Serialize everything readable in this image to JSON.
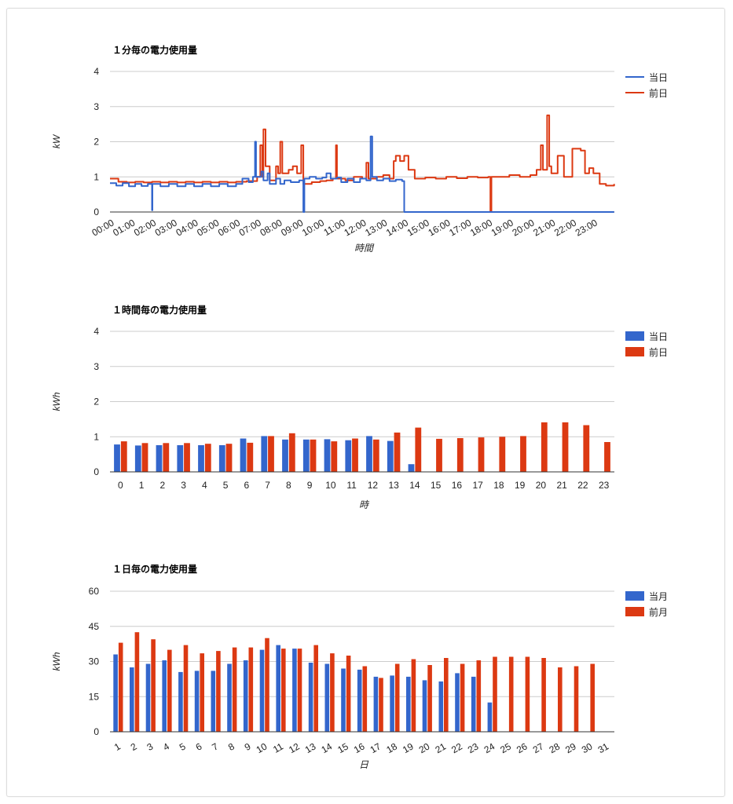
{
  "colors": {
    "current": "#3366cc",
    "previous": "#dc3912",
    "grid": "#cccccc",
    "axis": "#333333"
  },
  "chart_data": [
    {
      "type": "line",
      "title": "１分毎の電力使用量",
      "xlabel": "時間",
      "ylabel": "kW",
      "ylim": [
        0,
        4
      ],
      "yticks": [
        "0",
        "1",
        "2",
        "3",
        "4"
      ],
      "xticks": [
        "00:00",
        "01:00",
        "02:00",
        "03:00",
        "04:00",
        "05:00",
        "06:00",
        "07:00",
        "08:00",
        "09:00",
        "10:00",
        "11:00",
        "12:00",
        "13:00",
        "14:00",
        "15:00",
        "16:00",
        "17:00",
        "18:00",
        "19:00",
        "20:00",
        "21:00",
        "22:00",
        "23:00"
      ],
      "legend_position": "right",
      "series": [
        {
          "name": "当日",
          "points": [
            [
              0,
              0.82
            ],
            [
              0.3,
              0.75
            ],
            [
              0.6,
              0.82
            ],
            [
              0.9,
              0.73
            ],
            [
              1.2,
              0.8
            ],
            [
              1.5,
              0.74
            ],
            [
              1.8,
              0.8
            ],
            [
              2.0,
              0.05
            ],
            [
              2.02,
              0.8
            ],
            [
              2.4,
              0.73
            ],
            [
              2.8,
              0.8
            ],
            [
              3.2,
              0.73
            ],
            [
              3.6,
              0.8
            ],
            [
              4.0,
              0.73
            ],
            [
              4.4,
              0.8
            ],
            [
              4.8,
              0.73
            ],
            [
              5.2,
              0.8
            ],
            [
              5.6,
              0.73
            ],
            [
              6.0,
              0.8
            ],
            [
              6.3,
              0.95
            ],
            [
              6.6,
              0.85
            ],
            [
              6.8,
              1.0
            ],
            [
              6.9,
              2.0
            ],
            [
              6.95,
              1.0
            ],
            [
              7.2,
              1.15
            ],
            [
              7.3,
              0.9
            ],
            [
              7.5,
              1.1
            ],
            [
              7.6,
              0.8
            ],
            [
              7.9,
              0.95
            ],
            [
              8.1,
              0.8
            ],
            [
              8.3,
              0.9
            ],
            [
              8.6,
              0.85
            ],
            [
              9.0,
              0.9
            ],
            [
              9.2,
              0.0
            ],
            [
              9.25,
              0.95
            ],
            [
              9.5,
              1.0
            ],
            [
              9.8,
              0.95
            ],
            [
              10.1,
              0.98
            ],
            [
              10.3,
              1.1
            ],
            [
              10.5,
              0.95
            ],
            [
              10.8,
              0.98
            ],
            [
              11.0,
              0.85
            ],
            [
              11.3,
              0.95
            ],
            [
              11.6,
              0.85
            ],
            [
              11.9,
              0.95
            ],
            [
              12.2,
              0.9
            ],
            [
              12.4,
              2.15
            ],
            [
              12.48,
              1.0
            ],
            [
              12.7,
              0.9
            ],
            [
              13.0,
              0.95
            ],
            [
              13.3,
              0.88
            ],
            [
              13.6,
              0.92
            ],
            [
              13.9,
              0.88
            ],
            [
              14.0,
              0.0
            ],
            [
              23.99,
              0.0
            ]
          ]
        },
        {
          "name": "前日",
          "points": [
            [
              0,
              0.95
            ],
            [
              0.4,
              0.86
            ],
            [
              0.8,
              0.84
            ],
            [
              1.2,
              0.86
            ],
            [
              1.6,
              0.84
            ],
            [
              2.0,
              0.86
            ],
            [
              2.4,
              0.84
            ],
            [
              2.8,
              0.86
            ],
            [
              3.2,
              0.84
            ],
            [
              3.6,
              0.86
            ],
            [
              4.0,
              0.84
            ],
            [
              4.4,
              0.86
            ],
            [
              4.8,
              0.84
            ],
            [
              5.2,
              0.86
            ],
            [
              5.6,
              0.84
            ],
            [
              6.0,
              0.86
            ],
            [
              6.5,
              0.88
            ],
            [
              7.0,
              1.0
            ],
            [
              7.15,
              1.9
            ],
            [
              7.25,
              1.0
            ],
            [
              7.3,
              2.35
            ],
            [
              7.4,
              1.3
            ],
            [
              7.6,
              0.9
            ],
            [
              7.9,
              1.3
            ],
            [
              8.0,
              1.1
            ],
            [
              8.1,
              2.0
            ],
            [
              8.2,
              1.1
            ],
            [
              8.5,
              1.2
            ],
            [
              8.7,
              1.3
            ],
            [
              8.9,
              1.1
            ],
            [
              9.1,
              1.9
            ],
            [
              9.2,
              0.8
            ],
            [
              9.6,
              0.85
            ],
            [
              10.0,
              0.88
            ],
            [
              10.3,
              0.9
            ],
            [
              10.6,
              0.95
            ],
            [
              10.75,
              1.9
            ],
            [
              10.8,
              0.95
            ],
            [
              11.2,
              0.9
            ],
            [
              11.6,
              1.0
            ],
            [
              12.0,
              0.95
            ],
            [
              12.2,
              1.4
            ],
            [
              12.3,
              0.95
            ],
            [
              12.7,
              1.0
            ],
            [
              13.0,
              1.05
            ],
            [
              13.3,
              0.95
            ],
            [
              13.5,
              1.45
            ],
            [
              13.6,
              1.6
            ],
            [
              13.8,
              1.45
            ],
            [
              14.0,
              1.6
            ],
            [
              14.2,
              1.2
            ],
            [
              14.5,
              0.95
            ],
            [
              15.0,
              0.98
            ],
            [
              15.5,
              0.95
            ],
            [
              16.0,
              1.0
            ],
            [
              16.5,
              0.96
            ],
            [
              17.0,
              1.0
            ],
            [
              17.5,
              0.98
            ],
            [
              18.0,
              1.0
            ],
            [
              18.1,
              0.02
            ],
            [
              18.15,
              1.0
            ],
            [
              18.6,
              1.0
            ],
            [
              19.0,
              1.05
            ],
            [
              19.5,
              1.0
            ],
            [
              20.0,
              1.05
            ],
            [
              20.3,
              1.2
            ],
            [
              20.5,
              1.9
            ],
            [
              20.6,
              1.2
            ],
            [
              20.8,
              2.75
            ],
            [
              20.9,
              1.3
            ],
            [
              21.0,
              1.1
            ],
            [
              21.3,
              1.6
            ],
            [
              21.6,
              1.0
            ],
            [
              22.0,
              1.8
            ],
            [
              22.4,
              1.75
            ],
            [
              22.6,
              1.1
            ],
            [
              22.8,
              1.25
            ],
            [
              23.0,
              1.1
            ],
            [
              23.3,
              0.8
            ],
            [
              23.6,
              0.75
            ],
            [
              23.99,
              0.8
            ]
          ]
        }
      ]
    },
    {
      "type": "bar",
      "title": "１時間毎の電力使用量",
      "xlabel": "時",
      "ylabel": "kWh",
      "ylim": [
        0,
        4
      ],
      "yticks": [
        "0",
        "1",
        "2",
        "3",
        "4"
      ],
      "categories": [
        "0",
        "1",
        "2",
        "3",
        "4",
        "5",
        "6",
        "7",
        "8",
        "9",
        "10",
        "11",
        "12",
        "13",
        "14",
        "15",
        "16",
        "17",
        "18",
        "19",
        "20",
        "21",
        "22",
        "23"
      ],
      "legend_position": "right",
      "series": [
        {
          "name": "当日",
          "values": [
            0.78,
            0.75,
            0.76,
            0.76,
            0.76,
            0.76,
            0.95,
            1.02,
            0.92,
            0.92,
            0.93,
            0.9,
            1.02,
            0.88,
            0.22,
            null,
            null,
            null,
            null,
            null,
            null,
            null,
            null,
            null
          ]
        },
        {
          "name": "前日",
          "values": [
            0.87,
            0.82,
            0.82,
            0.82,
            0.8,
            0.8,
            0.83,
            1.02,
            1.1,
            0.92,
            0.87,
            0.95,
            0.92,
            1.12,
            1.26,
            0.94,
            0.96,
            0.98,
            1.0,
            1.02,
            1.41,
            1.41,
            1.33,
            0.85
          ]
        }
      ]
    },
    {
      "type": "bar",
      "title": "１日毎の電力使用量",
      "xlabel": "日",
      "ylabel": "kWh",
      "ylim": [
        0,
        60
      ],
      "yticks": [
        "0",
        "15",
        "30",
        "45",
        "60"
      ],
      "categories": [
        "1",
        "2",
        "3",
        "4",
        "5",
        "6",
        "7",
        "8",
        "9",
        "10",
        "11",
        "12",
        "13",
        "14",
        "15",
        "16",
        "17",
        "18",
        "19",
        "20",
        "21",
        "22",
        "23",
        "24",
        "25",
        "26",
        "27",
        "28",
        "29",
        "30",
        "31"
      ],
      "legend_position": "right",
      "series": [
        {
          "name": "当月",
          "values": [
            33,
            27.5,
            29,
            30.5,
            25.5,
            26,
            26,
            29,
            30.5,
            35,
            37,
            35.5,
            29.5,
            29,
            27,
            26.5,
            23.5,
            24,
            23.5,
            22,
            21.5,
            25,
            23.5,
            12.5,
            null,
            null,
            null,
            null,
            null,
            null,
            null
          ]
        },
        {
          "name": "前月",
          "values": [
            38,
            42.5,
            39.5,
            35,
            37,
            33.5,
            34.5,
            36,
            36,
            40,
            35.5,
            35.5,
            37,
            33.5,
            32.5,
            28,
            23,
            29,
            31,
            28.5,
            31.5,
            29,
            30.5,
            32,
            32,
            32,
            31.5,
            27.5,
            28,
            29,
            null
          ]
        }
      ]
    }
  ]
}
